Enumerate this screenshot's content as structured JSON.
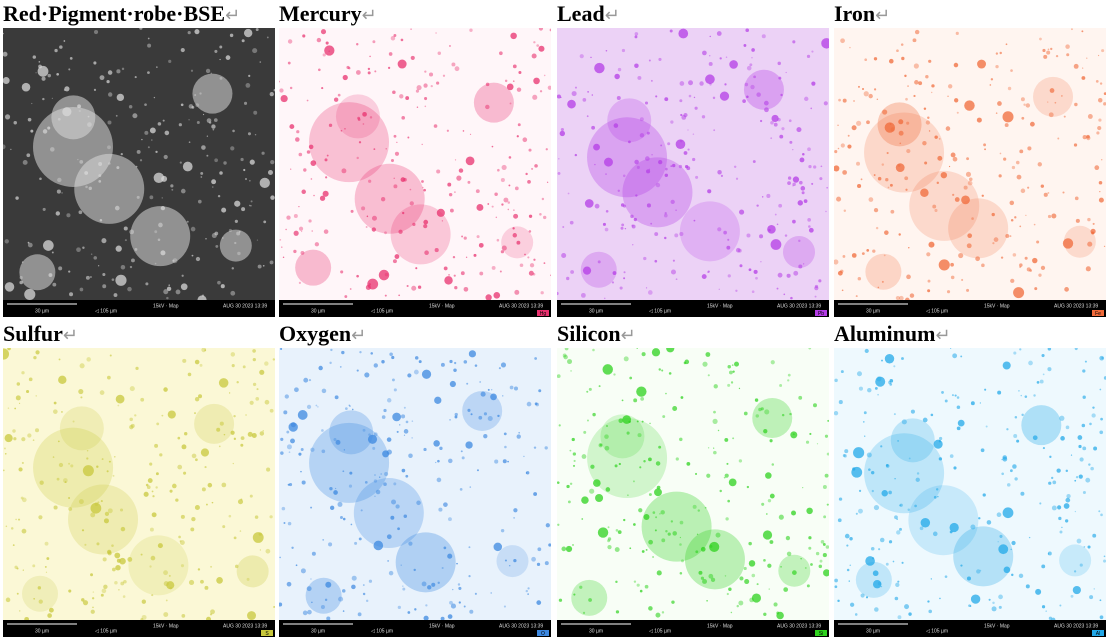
{
  "return_mark": "↵",
  "footer": {
    "scale": "30 µm",
    "field": "◁ 105 µm",
    "mode": "15kV · Map",
    "date": "AUG 30 2023 13:39"
  },
  "panels": [
    {
      "title": "Red·Pigment·robe·BSE",
      "badge": "",
      "color": "#d8d8d8",
      "background": "#3a3a3a"
    },
    {
      "title": "Mercury",
      "badge": "Hg",
      "color": "#e8306e",
      "background": "#fff6f9"
    },
    {
      "title": "Lead",
      "badge": "Pb",
      "color": "#b43ce6",
      "background": "#ecd2f6"
    },
    {
      "title": "Iron",
      "badge": "Fe",
      "color": "#f06a3a",
      "background": "#fff5f0"
    },
    {
      "title": "Sulfur",
      "badge": "S",
      "color": "#c8c83c",
      "background": "#fbf8d6"
    },
    {
      "title": "Oxygen",
      "badge": "O",
      "color": "#3c88e0",
      "background": "#e8f2fc"
    },
    {
      "title": "Silicon",
      "badge": "Si",
      "color": "#2ed21e",
      "background": "#f8fef6"
    },
    {
      "title": "Aluminum",
      "badge": "Al",
      "color": "#22a8e8",
      "background": "#eef9fe"
    }
  ]
}
